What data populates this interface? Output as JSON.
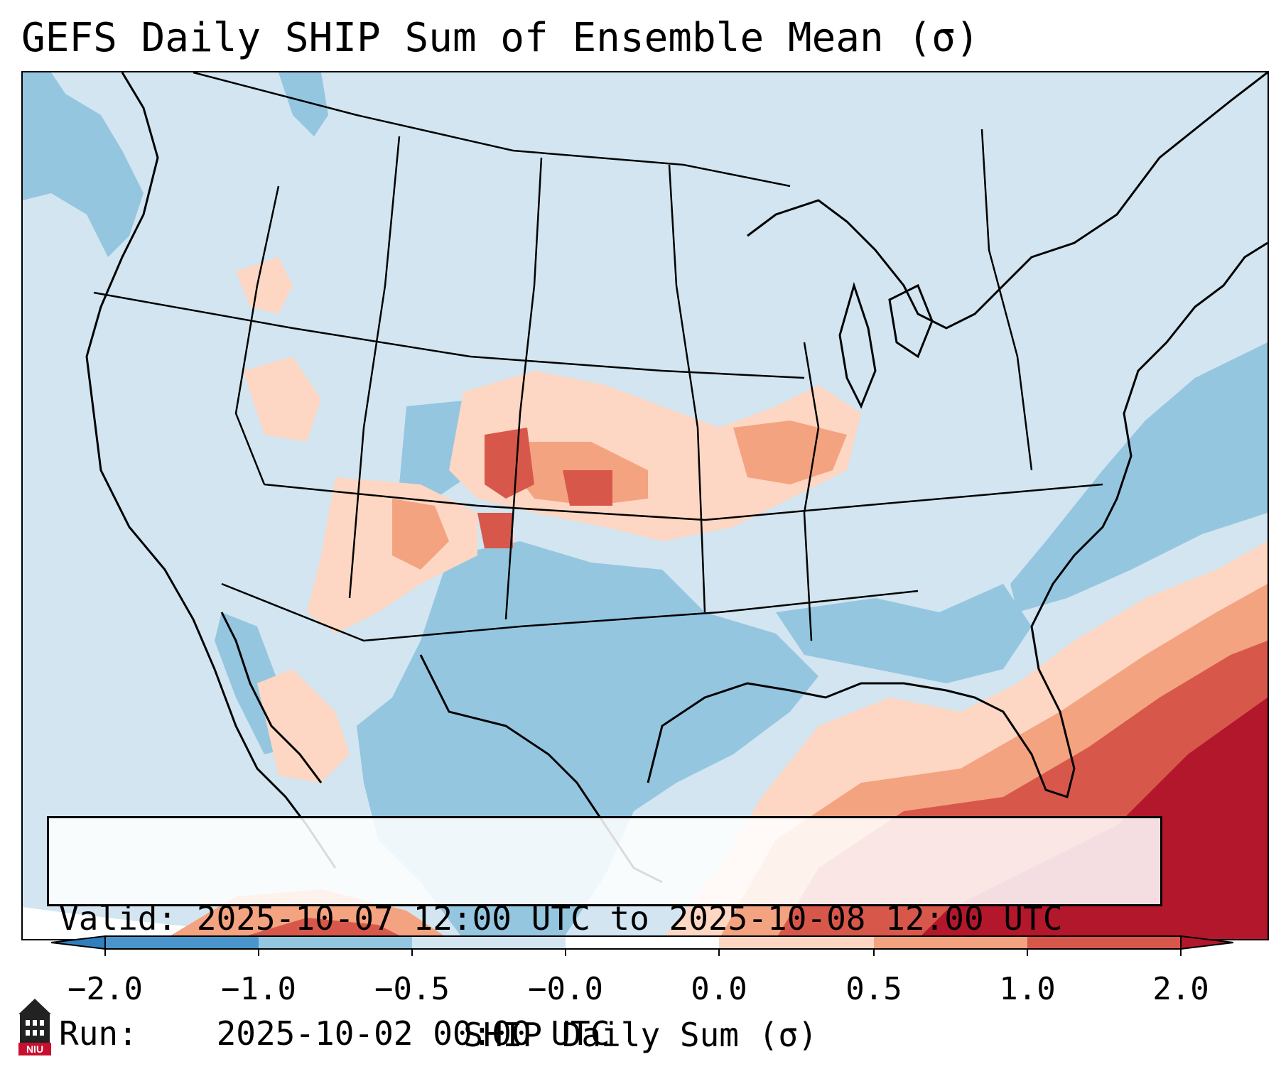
{
  "title": "GEFS Daily SHIP Sum of Ensemble Mean (σ)",
  "info": {
    "valid_label": "Valid:",
    "valid_value": "2025-10-07 12:00 UTC to 2025-10-08 12:00 UTC",
    "run_label": "Run:",
    "run_value": "2025-10-02 00:00 UTC"
  },
  "colorbar": {
    "label": "SHIP Daily Sum (σ)",
    "ticks": [
      "−2.0",
      "−1.0",
      "−0.5",
      "−0.0",
      "0.0",
      "0.5",
      "1.0",
      "2.0"
    ],
    "colors": {
      "below_min": "#2f7fbf",
      "bin_1": "#4a96cc",
      "bin_2": "#94c6e0",
      "bin_3": "#d2e5f0",
      "bin_4": "#ffffff",
      "bin_5": "#fdd7c3",
      "bin_6": "#f4a380",
      "bin_7": "#d7584b",
      "above_max": "#b3172b"
    }
  },
  "logo": {
    "text": "NIU",
    "color": "#c8102e"
  }
}
